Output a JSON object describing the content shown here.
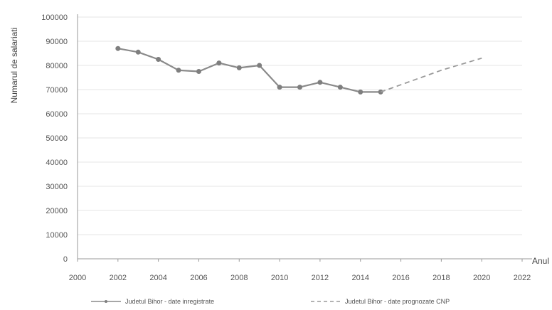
{
  "chart_data": {
    "type": "line",
    "title": "",
    "xlabel": "Anul",
    "ylabel": "Numarul de salariati",
    "xlim": [
      2000,
      2022
    ],
    "ylim": [
      0,
      100000
    ],
    "x_ticks": [
      "2000",
      "2002",
      "2004",
      "2006",
      "2008",
      "2010",
      "2012",
      "2014",
      "2016",
      "2018",
      "2020",
      "2022"
    ],
    "y_ticks": [
      "0",
      "10000",
      "20000",
      "30000",
      "40000",
      "50000",
      "60000",
      "70000",
      "80000",
      "90000",
      "100000"
    ],
    "grid": true,
    "legend_position": "bottom",
    "series": [
      {
        "name": "Judetul Bihor - date inregistrate",
        "style": "solid-markers",
        "color": "#8a8a8a",
        "x": [
          2002,
          2003,
          2004,
          2005,
          2006,
          2007,
          2008,
          2009,
          2010,
          2011,
          2012,
          2013,
          2014,
          2015
        ],
        "y": [
          87000,
          85500,
          82500,
          78000,
          77500,
          81000,
          79000,
          80000,
          71000,
          71000,
          73000,
          71000,
          69000,
          69000
        ]
      },
      {
        "name": "Judetul Bihor - date prognozate CNP",
        "style": "dashed",
        "color": "#9a9a9a",
        "x": [
          2015,
          2016,
          2017,
          2018,
          2019,
          2020
        ],
        "y": [
          69000,
          72000,
          75000,
          78000,
          80500,
          83000
        ]
      }
    ]
  }
}
